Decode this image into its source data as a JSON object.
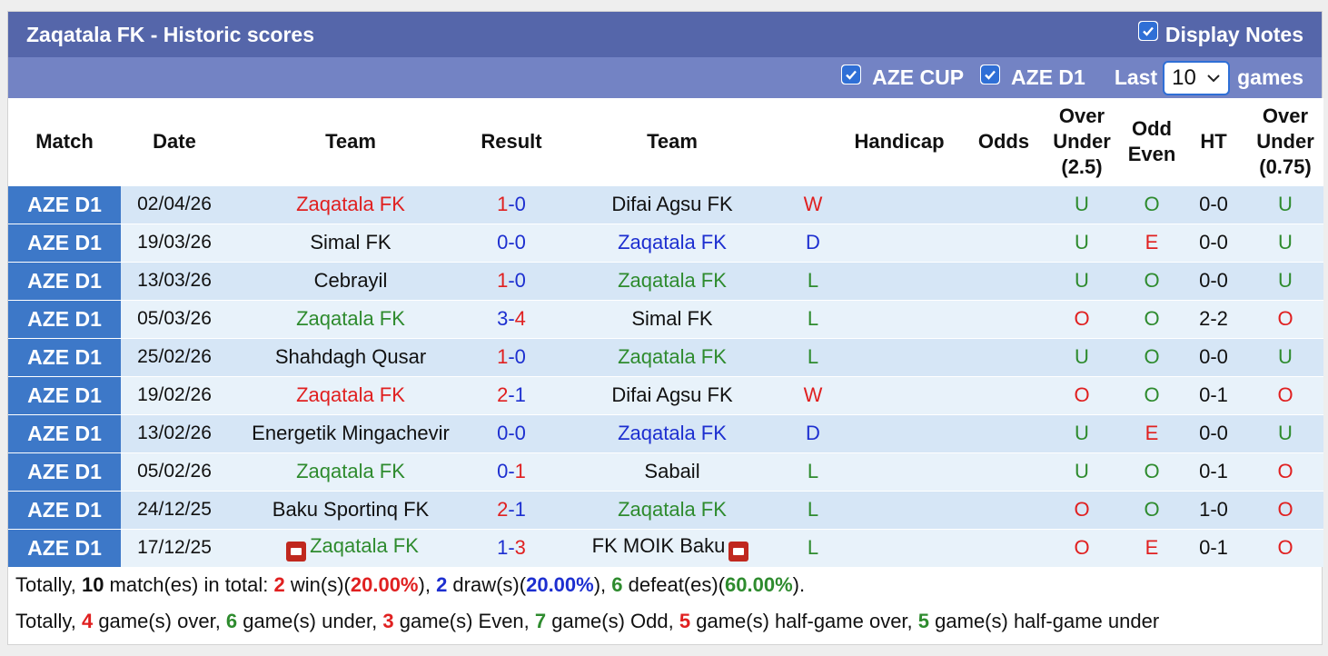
{
  "header": {
    "title": "Zaqatala FK - Historic scores",
    "display_notes_label": "Display Notes",
    "display_notes_checked": true
  },
  "filters": {
    "cup_label": "AZE CUP",
    "league_label": "AZE D1",
    "last_label": "Last",
    "games_label": "games",
    "last_value": "10"
  },
  "columns": [
    "Match",
    "Date",
    "Team",
    "Result",
    "Team",
    "",
    "Handicap",
    "Odds",
    "Over Under (2.5)",
    "Odd Even",
    "HT",
    "Over Under (0.75)"
  ],
  "rows": [
    {
      "match": "AZE D1",
      "date": "02/04/26",
      "home": "Zaqatala FK",
      "home_color": "red",
      "score_home": "1",
      "score_away": "0",
      "sh_color": "red",
      "sa_color": "blue",
      "away": "Difai Agsu FK",
      "away_color": "black",
      "res": "W",
      "res_color": "red",
      "ou": "U",
      "ou_color": "green",
      "oe": "O",
      "oe_color": "green",
      "ht": "0-0",
      "ou75": "U",
      "ou75_color": "green",
      "home_flag": false,
      "away_flag": false
    },
    {
      "match": "AZE D1",
      "date": "19/03/26",
      "home": "Simal FK",
      "home_color": "black",
      "score_home": "0",
      "score_away": "0",
      "sh_color": "blue",
      "sa_color": "blue",
      "away": "Zaqatala FK",
      "away_color": "blue",
      "res": "D",
      "res_color": "blue",
      "ou": "U",
      "ou_color": "green",
      "oe": "E",
      "oe_color": "red",
      "ht": "0-0",
      "ou75": "U",
      "ou75_color": "green",
      "home_flag": false,
      "away_flag": false
    },
    {
      "match": "AZE D1",
      "date": "13/03/26",
      "home": "Cebrayil",
      "home_color": "black",
      "score_home": "1",
      "score_away": "0",
      "sh_color": "red",
      "sa_color": "blue",
      "away": "Zaqatala FK",
      "away_color": "green",
      "res": "L",
      "res_color": "green",
      "ou": "U",
      "ou_color": "green",
      "oe": "O",
      "oe_color": "green",
      "ht": "0-0",
      "ou75": "U",
      "ou75_color": "green",
      "home_flag": false,
      "away_flag": false
    },
    {
      "match": "AZE D1",
      "date": "05/03/26",
      "home": "Zaqatala FK",
      "home_color": "green",
      "score_home": "3",
      "score_away": "4",
      "sh_color": "blue",
      "sa_color": "red",
      "away": "Simal FK",
      "away_color": "black",
      "res": "L",
      "res_color": "green",
      "ou": "O",
      "ou_color": "red",
      "oe": "O",
      "oe_color": "green",
      "ht": "2-2",
      "ou75": "O",
      "ou75_color": "red",
      "home_flag": false,
      "away_flag": false
    },
    {
      "match": "AZE D1",
      "date": "25/02/26",
      "home": "Shahdagh Qusar",
      "home_color": "black",
      "score_home": "1",
      "score_away": "0",
      "sh_color": "red",
      "sa_color": "blue",
      "away": "Zaqatala FK",
      "away_color": "green",
      "res": "L",
      "res_color": "green",
      "ou": "U",
      "ou_color": "green",
      "oe": "O",
      "oe_color": "green",
      "ht": "0-0",
      "ou75": "U",
      "ou75_color": "green",
      "home_flag": false,
      "away_flag": false
    },
    {
      "match": "AZE D1",
      "date": "19/02/26",
      "home": "Zaqatala FK",
      "home_color": "red",
      "score_home": "2",
      "score_away": "1",
      "sh_color": "red",
      "sa_color": "blue",
      "away": "Difai Agsu FK",
      "away_color": "black",
      "res": "W",
      "res_color": "red",
      "ou": "O",
      "ou_color": "red",
      "oe": "O",
      "oe_color": "green",
      "ht": "0-1",
      "ou75": "O",
      "ou75_color": "red",
      "home_flag": false,
      "away_flag": false
    },
    {
      "match": "AZE D1",
      "date": "13/02/26",
      "home": "Energetik Mingachevir",
      "home_color": "black",
      "score_home": "0",
      "score_away": "0",
      "sh_color": "blue",
      "sa_color": "blue",
      "away": "Zaqatala FK",
      "away_color": "blue",
      "res": "D",
      "res_color": "blue",
      "ou": "U",
      "ou_color": "green",
      "oe": "E",
      "oe_color": "red",
      "ht": "0-0",
      "ou75": "U",
      "ou75_color": "green",
      "home_flag": false,
      "away_flag": false
    },
    {
      "match": "AZE D1",
      "date": "05/02/26",
      "home": "Zaqatala FK",
      "home_color": "green",
      "score_home": "0",
      "score_away": "1",
      "sh_color": "blue",
      "sa_color": "red",
      "away": "Sabail",
      "away_color": "black",
      "res": "L",
      "res_color": "green",
      "ou": "U",
      "ou_color": "green",
      "oe": "O",
      "oe_color": "green",
      "ht": "0-1",
      "ou75": "O",
      "ou75_color": "red",
      "home_flag": false,
      "away_flag": false
    },
    {
      "match": "AZE D1",
      "date": "24/12/25",
      "home": "Baku Sportinq FK",
      "home_color": "black",
      "score_home": "2",
      "score_away": "1",
      "sh_color": "red",
      "sa_color": "blue",
      "away": "Zaqatala FK",
      "away_color": "green",
      "res": "L",
      "res_color": "green",
      "ou": "O",
      "ou_color": "red",
      "oe": "O",
      "oe_color": "green",
      "ht": "1-0",
      "ou75": "O",
      "ou75_color": "red",
      "home_flag": false,
      "away_flag": false
    },
    {
      "match": "AZE D1",
      "date": "17/12/25",
      "home": "Zaqatala FK",
      "home_color": "green",
      "score_home": "1",
      "score_away": "3",
      "sh_color": "blue",
      "sa_color": "red",
      "away": "FK MOIK Baku",
      "away_color": "black",
      "res": "L",
      "res_color": "green",
      "ou": "O",
      "ou_color": "red",
      "oe": "E",
      "oe_color": "red",
      "ht": "0-1",
      "ou75": "O",
      "ou75_color": "red",
      "home_flag": true,
      "away_flag": true
    }
  ],
  "summary1": [
    {
      "t": "Totally, ",
      "c": "black",
      "b": false
    },
    {
      "t": "10",
      "c": "black",
      "b": true
    },
    {
      "t": " match(es) in total: ",
      "c": "black",
      "b": false
    },
    {
      "t": "2",
      "c": "red",
      "b": true
    },
    {
      "t": " win(s)(",
      "c": "black",
      "b": false
    },
    {
      "t": "20.00%",
      "c": "red",
      "b": true
    },
    {
      "t": "), ",
      "c": "black",
      "b": false
    },
    {
      "t": "2",
      "c": "blue",
      "b": true
    },
    {
      "t": " draw(s)(",
      "c": "black",
      "b": false
    },
    {
      "t": "20.00%",
      "c": "blue",
      "b": true
    },
    {
      "t": "), ",
      "c": "black",
      "b": false
    },
    {
      "t": "6",
      "c": "green",
      "b": true
    },
    {
      "t": " defeat(es)(",
      "c": "black",
      "b": false
    },
    {
      "t": "60.00%",
      "c": "green",
      "b": true
    },
    {
      "t": ").",
      "c": "black",
      "b": false
    }
  ],
  "summary2": [
    {
      "t": "Totally, ",
      "c": "black",
      "b": false
    },
    {
      "t": "4",
      "c": "red",
      "b": true
    },
    {
      "t": " game(s) over, ",
      "c": "black",
      "b": false
    },
    {
      "t": "6",
      "c": "green",
      "b": true
    },
    {
      "t": " game(s) under, ",
      "c": "black",
      "b": false
    },
    {
      "t": "3",
      "c": "red",
      "b": true
    },
    {
      "t": " game(s) Even, ",
      "c": "black",
      "b": false
    },
    {
      "t": "7",
      "c": "green",
      "b": true
    },
    {
      "t": " game(s) Odd, ",
      "c": "black",
      "b": false
    },
    {
      "t": "5",
      "c": "red",
      "b": true
    },
    {
      "t": " game(s) half-game over, ",
      "c": "black",
      "b": false
    },
    {
      "t": "5",
      "c": "green",
      "b": true
    },
    {
      "t": " game(s) half-game under",
      "c": "black",
      "b": false
    }
  ],
  "colors": {
    "title_bg": "#5566aa",
    "filter_bg": "#7383c4",
    "match_bg": "#3d78c8",
    "row_odd": "#d6e6f6",
    "row_even": "#e8f2fa",
    "red": "#e02020",
    "blue": "#1d2fd0",
    "green": "#2e8b2e"
  }
}
